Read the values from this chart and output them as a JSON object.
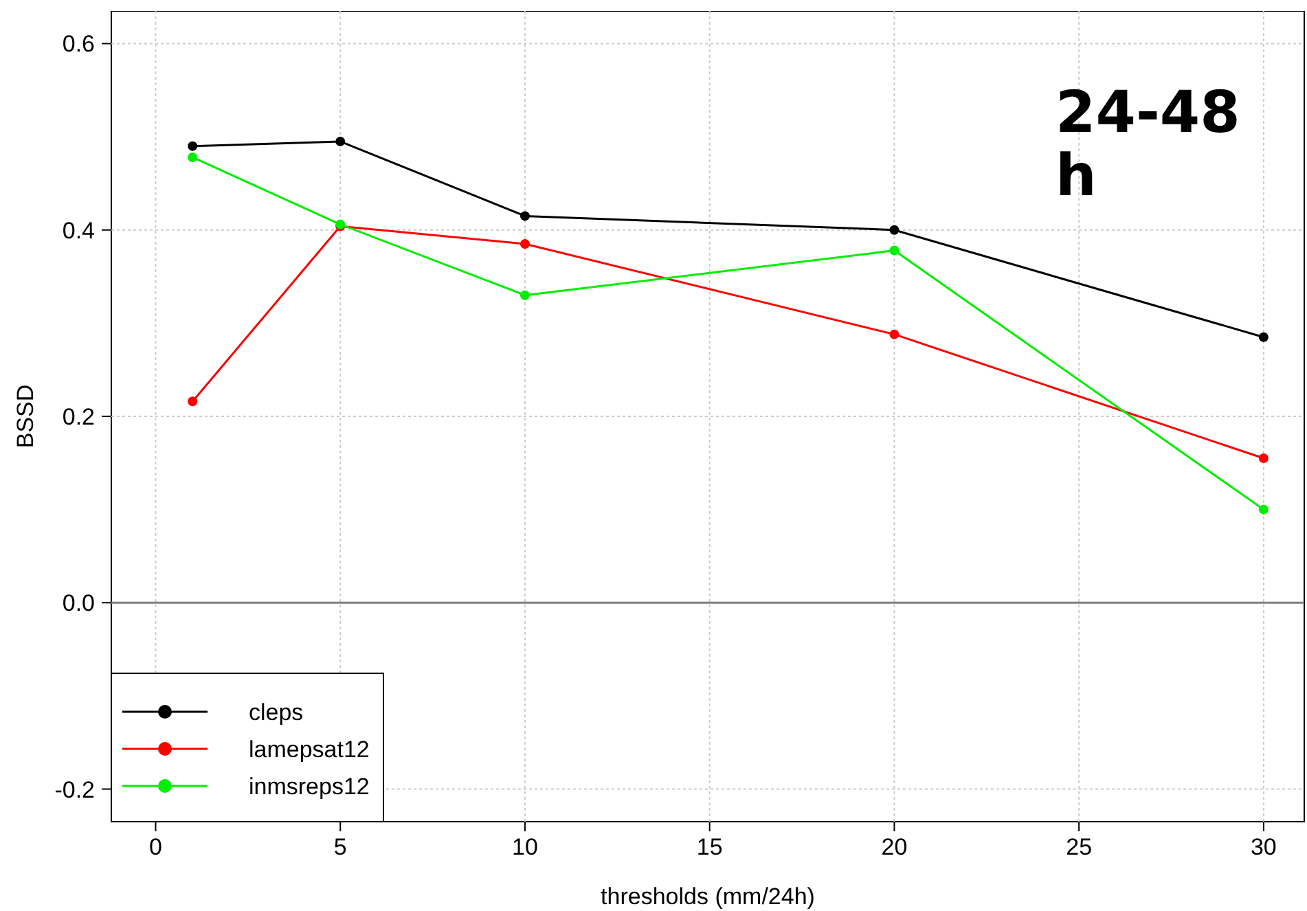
{
  "chart_data": {
    "type": "line",
    "xlabel": "thresholds (mm/24h)",
    "ylabel": "BSSD",
    "annotations": [
      "24-48 h"
    ],
    "x": [
      1,
      5,
      10,
      20,
      30
    ],
    "series": [
      {
        "name": "cleps",
        "color": "#000000",
        "values": [
          0.49,
          0.495,
          0.415,
          0.4,
          0.285
        ]
      },
      {
        "name": "lamepsat12",
        "color": "#ff0000",
        "values": [
          0.216,
          0.404,
          0.385,
          0.288,
          0.155
        ]
      },
      {
        "name": "inmsreps12",
        "color": "#00ee00",
        "values": [
          0.478,
          0.406,
          0.33,
          0.378,
          0.1
        ]
      }
    ],
    "xlim": [
      -1.2,
      31.1
    ],
    "ylim": [
      -0.235,
      0.635
    ],
    "xticks": [
      0,
      5,
      10,
      15,
      20,
      25,
      30
    ],
    "yticks": [
      -0.2,
      {
        "value": 0,
        "label": "0.0"
      },
      0.2,
      0.4,
      0.6
    ],
    "ref_lines": [
      {
        "axis": "y",
        "value": 0,
        "color": "#808080"
      }
    ],
    "grid": true,
    "legend": "bottom left",
    "marker": "circle",
    "line_style": "solid"
  }
}
